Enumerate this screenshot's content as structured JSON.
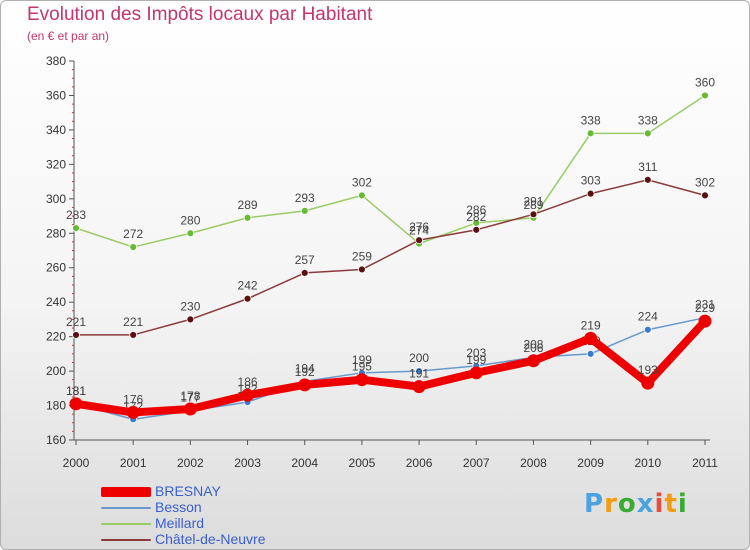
{
  "chart_data": {
    "type": "line",
    "title": "Evolution des Impôts locaux par Habitant",
    "subtitle": "(en € et par an)",
    "xlabel": "",
    "ylabel": "",
    "categories": [
      "2000",
      "2001",
      "2002",
      "2003",
      "2004",
      "2005",
      "2006",
      "2007",
      "2008",
      "2009",
      "2010",
      "2011"
    ],
    "ylim": [
      160,
      380
    ],
    "yticks": [
      160,
      180,
      200,
      220,
      240,
      260,
      280,
      300,
      320,
      340,
      360,
      380
    ],
    "grid": false,
    "legend_position": "bottom-left",
    "series": [
      {
        "name": "Meillard",
        "color": "#99cc66",
        "marker": "#66bb33",
        "values": [
          283,
          272,
          280,
          289,
          293,
          302,
          274,
          286,
          289,
          338,
          338,
          360
        ]
      },
      {
        "name": "Châtel-de-Neuvre",
        "color": "#8b3a3a",
        "marker": "#5a1010",
        "values": [
          221,
          221,
          230,
          242,
          257,
          259,
          276,
          282,
          291,
          303,
          311,
          302
        ]
      },
      {
        "name": "Besson",
        "color": "#6699cc",
        "marker": "#3a7acc",
        "values": [
          181,
          172,
          177,
          182,
          194,
          199,
          200,
          203,
          208,
          210,
          224,
          231
        ]
      },
      {
        "name": "BRESNAY",
        "color": "#ee0000",
        "marker": "#ee0000",
        "values": [
          181,
          176,
          178,
          186,
          192,
          195,
          191,
          199,
          206,
          219,
          193,
          229
        ]
      }
    ]
  },
  "legend": [
    {
      "name": "BRESNAY",
      "color": "#ee0000"
    },
    {
      "name": "Besson",
      "color": "#6699cc"
    },
    {
      "name": "Meillard",
      "color": "#99cc66"
    },
    {
      "name": "Châtel-de-Neuvre",
      "color": "#8b3a3a"
    }
  ],
  "logo": {
    "text": "Proxiti",
    "colors": [
      "#4aa3df",
      "#f39c12",
      "#3aaa35",
      "#4aa3df",
      "#e74c3c",
      "#f39c12",
      "#3aaa35"
    ]
  }
}
